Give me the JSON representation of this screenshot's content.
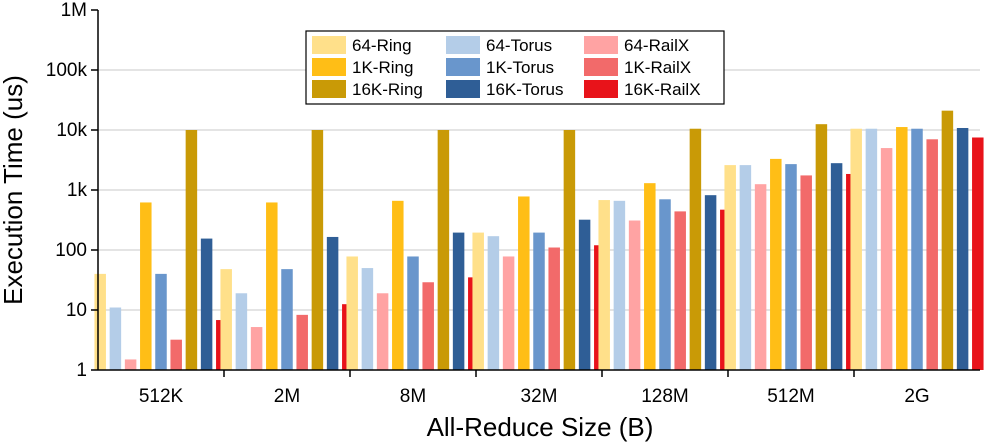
{
  "chart_data": {
    "type": "bar",
    "xlabel": "All-Reduce Size (B)",
    "ylabel": "Execution Time (us)",
    "yscale": "log",
    "ylim": [
      1,
      1000000
    ],
    "yticks": [
      1,
      10,
      100,
      1000,
      10000,
      100000,
      1000000
    ],
    "ytick_labels": [
      "1",
      "10",
      "100",
      "1k",
      "10k",
      "100k",
      "1M"
    ],
    "grid": "horizontal",
    "legend_position": "top-center",
    "categories": [
      "512K",
      "2M",
      "8M",
      "32M",
      "128M",
      "512M",
      "2G"
    ],
    "series": [
      {
        "name": "64-Ring",
        "color": "#FFE08A",
        "values": [
          40,
          48,
          78,
          195,
          680,
          2600,
          10500
        ]
      },
      {
        "name": "64-Torus",
        "color": "#B4CDE8",
        "values": [
          11,
          19,
          50,
          170,
          660,
          2600,
          10500
        ]
      },
      {
        "name": "64-RailX",
        "color": "#FFA3A3",
        "values": [
          1.5,
          5.2,
          19,
          78,
          310,
          1250,
          5000
        ]
      },
      {
        "name": "1K-Ring",
        "color": "#FFBE16",
        "values": [
          620,
          620,
          660,
          780,
          1300,
          3300,
          11200
        ]
      },
      {
        "name": "1K-Torus",
        "color": "#6996CC",
        "values": [
          40,
          48,
          78,
          195,
          700,
          2700,
          10500
        ]
      },
      {
        "name": "1K-RailX",
        "color": "#F26A6A",
        "values": [
          3.2,
          8.3,
          29,
          110,
          440,
          1750,
          7000
        ]
      },
      {
        "name": "16K-Ring",
        "color": "#C99A06",
        "values": [
          10000,
          10000,
          10000,
          10000,
          10500,
          12500,
          21000
        ]
      },
      {
        "name": "16K-Torus",
        "color": "#2F5E96",
        "values": [
          155,
          165,
          195,
          320,
          820,
          2800,
          10800
        ]
      },
      {
        "name": "16K-RailX",
        "color": "#E8131A",
        "values": [
          6.8,
          12.5,
          35,
          120,
          470,
          1850,
          7500
        ]
      }
    ]
  }
}
